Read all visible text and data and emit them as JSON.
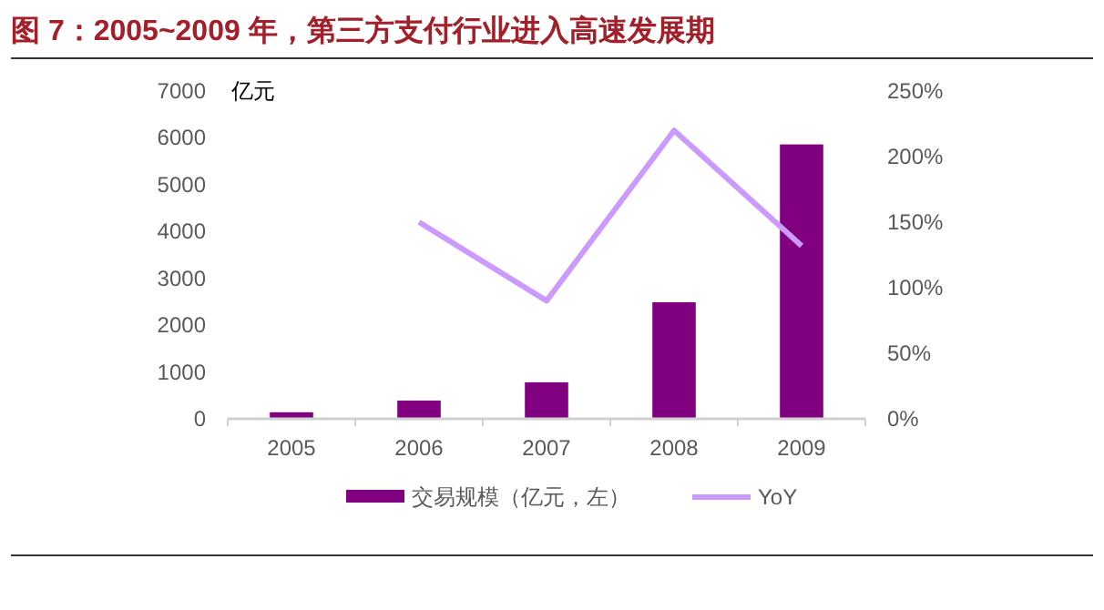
{
  "chart_data": {
    "type": "bar",
    "title": "图 7：2005~2009 年，第三方支付行业进入高速发展期",
    "ylabel": "亿元",
    "categories": [
      "2005",
      "2006",
      "2007",
      "2008",
      "2009"
    ],
    "series": [
      {
        "name": "交易规模（亿元，左）",
        "color": "#800080",
        "values": [
          140,
          390,
          780,
          2490,
          5860
        ]
      },
      {
        "name": "YoY",
        "type": "line",
        "axis": "y2",
        "color": "#cc99ff",
        "values": [
          null,
          150,
          90,
          220,
          132
        ]
      }
    ],
    "ylim": [
      0,
      7000
    ],
    "yticks": [
      0,
      1000,
      2000,
      3000,
      4000,
      5000,
      6000,
      7000
    ],
    "y2lim": [
      0,
      250
    ],
    "y2ticks": [
      {
        "value": 0,
        "label": "0%"
      },
      {
        "value": 50,
        "label": "50%"
      },
      {
        "value": 100,
        "label": "100%"
      },
      {
        "value": 150,
        "label": "150%"
      },
      {
        "value": 200,
        "label": "200%"
      },
      {
        "value": 250,
        "label": "250%"
      }
    ],
    "legend": "bottom",
    "grid": false,
    "marker": "none"
  }
}
